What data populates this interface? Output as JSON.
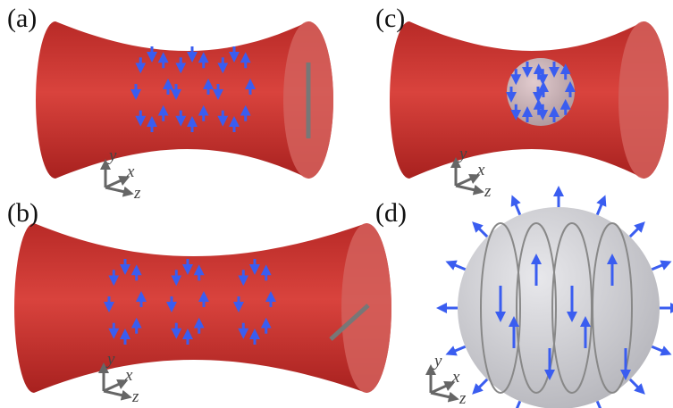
{
  "panels": [
    {
      "label": "(a)",
      "axes": {
        "y": "y",
        "x": "x",
        "z": "z"
      }
    },
    {
      "label": "(b)",
      "axes": {
        "y": "y",
        "x": "x",
        "z": "z"
      }
    },
    {
      "label": "(c)",
      "axes": {
        "y": "y",
        "x": "x",
        "z": "z"
      }
    },
    {
      "label": "(d)",
      "axes": {
        "y": "y",
        "x": "x",
        "z": "z"
      }
    }
  ]
}
